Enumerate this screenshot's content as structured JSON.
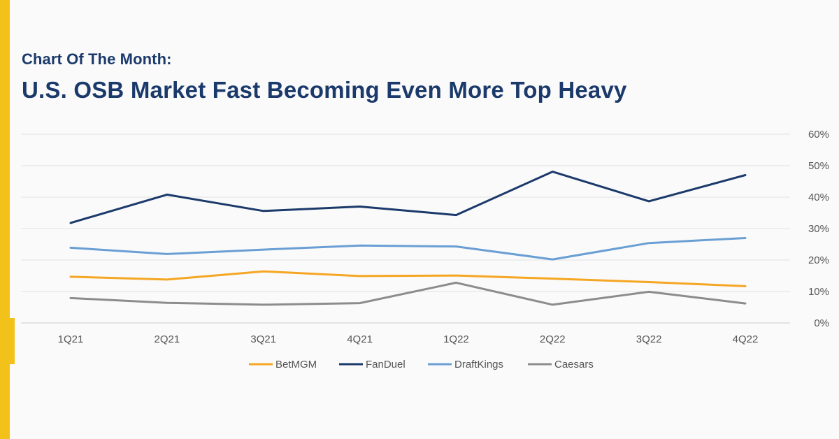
{
  "header": {
    "eyebrow": "Chart Of The Month:",
    "title": "U.S. OSB Market Fast Becoming Even More Top Heavy"
  },
  "colors": {
    "accent": "#f2c21b",
    "title": "#1b3a6b",
    "betmgm": "#f5a623",
    "fanduel": "#1b3a6b",
    "draftkings": "#6a9fd4",
    "caesars": "#8c8c8c"
  },
  "chart_data": {
    "type": "line",
    "title": "U.S. OSB Market Fast Becoming Even More Top Heavy",
    "categories": [
      "1Q21",
      "2Q21",
      "3Q21",
      "4Q21",
      "1Q22",
      "2Q22",
      "3Q22",
      "4Q22"
    ],
    "ylim": [
      0,
      60
    ],
    "yticks": [
      "0%",
      "10%",
      "20%",
      "30%",
      "40%",
      "50%",
      "60%"
    ],
    "y_axis_side": "right",
    "grid": true,
    "legend_position": "bottom",
    "series": [
      {
        "name": "BetMGM",
        "color": "#f5a623",
        "values": [
          14.7,
          13.8,
          16.4,
          14.9,
          15.1,
          14.1,
          13.0,
          11.7
        ]
      },
      {
        "name": "FanDuel",
        "color": "#1b3a6b",
        "values": [
          31.8,
          40.8,
          35.6,
          37.0,
          34.3,
          48.1,
          38.7,
          47.0
        ]
      },
      {
        "name": "DraftKings",
        "color": "#6a9fd4",
        "values": [
          23.9,
          21.9,
          23.3,
          24.6,
          24.3,
          20.2,
          25.4,
          27.0
        ]
      },
      {
        "name": "Caesars",
        "color": "#8c8c8c",
        "values": [
          7.9,
          6.4,
          5.8,
          6.3,
          12.8,
          5.8,
          9.9,
          6.2
        ]
      }
    ]
  }
}
